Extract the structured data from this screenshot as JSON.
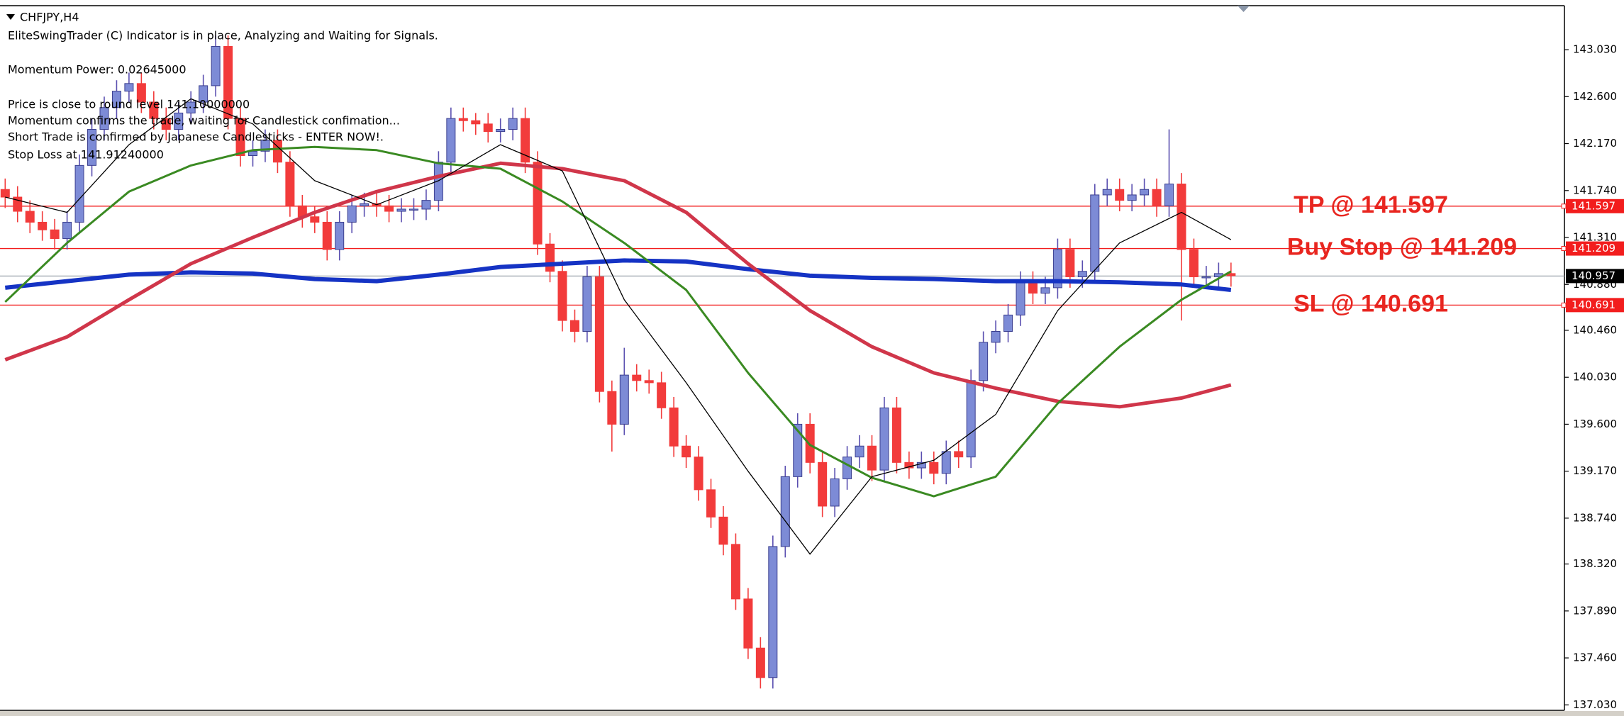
{
  "chart_data": {
    "type": "candlestick",
    "title": "CHFJPY,H4",
    "comment": [
      "EliteSwingTrader (C) Indicator is in place, Analyzing and Waiting for Signals.",
      "Momentum Power: 0.02645000",
      "Price is close to round level 141.10000000",
      "Momentum confirms the trade, waiting for Candlestick confimation...",
      "Short Trade is confirmed by Japanese Candlesticks - ENTER NOW!.",
      "Stop Loss at 141.91240000"
    ],
    "ylim": [
      136.98,
      143.42
    ],
    "yticks": [
      {
        "value": 143.03,
        "label": "143.030"
      },
      {
        "value": 142.6,
        "label": "142.600"
      },
      {
        "value": 142.17,
        "label": "142.170"
      },
      {
        "value": 141.74,
        "label": "141.740"
      },
      {
        "value": 141.31,
        "label": "141.310"
      },
      {
        "value": 140.88,
        "label": "140.880"
      },
      {
        "value": 140.46,
        "label": "140.460"
      },
      {
        "value": 140.03,
        "label": "140.030"
      },
      {
        "value": 139.6,
        "label": "139.600"
      },
      {
        "value": 139.17,
        "label": "139.170"
      },
      {
        "value": 138.74,
        "label": "138.740"
      },
      {
        "value": 138.32,
        "label": "138.320"
      },
      {
        "value": 137.89,
        "label": "137.890"
      },
      {
        "value": 137.46,
        "label": "137.460"
      },
      {
        "value": 137.03,
        "label": "137.030"
      }
    ],
    "bull_color": "#7d8bd6",
    "bear_color": "#f23b3b",
    "open": [
      141.75,
      141.68,
      141.55,
      141.45,
      141.38,
      141.3,
      141.45,
      141.97,
      142.3,
      142.5,
      142.65,
      142.72,
      142.55,
      142.4,
      142.3,
      142.45,
      142.55,
      142.7,
      143.06,
      142.4,
      142.06,
      142.1,
      142.2,
      142.0,
      141.6,
      141.5,
      141.45,
      141.2,
      141.45,
      141.6,
      141.62,
      141.6,
      141.55,
      141.57,
      141.57,
      141.65,
      142.0,
      142.4,
      142.38,
      142.35,
      142.28,
      142.3,
      142.4,
      142.0,
      141.25,
      141.0,
      140.55,
      140.45,
      140.95,
      139.9,
      139.6,
      140.05,
      140.0,
      139.98,
      139.75,
      139.4,
      139.3,
      139.0,
      138.75,
      138.5,
      138.0,
      137.55,
      137.28,
      138.48,
      139.12,
      139.6,
      139.25,
      138.85,
      139.1,
      139.3,
      139.4,
      139.18,
      139.75,
      139.25,
      139.2,
      139.25,
      139.15,
      139.35,
      139.3,
      140.0,
      140.35,
      140.45,
      140.6,
      140.9,
      140.8,
      140.85,
      141.2,
      140.95,
      141.0,
      141.7,
      141.75,
      141.65,
      141.7,
      141.75,
      141.6,
      141.8,
      141.2,
      140.95,
      140.95,
      140.98
    ],
    "high": [
      141.85,
      141.78,
      141.65,
      141.55,
      141.48,
      141.55,
      142.07,
      142.4,
      142.6,
      142.75,
      142.82,
      142.82,
      142.65,
      142.5,
      142.55,
      142.65,
      142.8,
      143.16,
      143.16,
      142.5,
      142.2,
      142.3,
      142.3,
      142.1,
      141.7,
      141.6,
      141.55,
      141.55,
      141.7,
      141.72,
      141.72,
      141.7,
      141.67,
      141.67,
      141.75,
      142.1,
      142.5,
      142.5,
      142.45,
      142.45,
      142.4,
      142.5,
      142.5,
      142.1,
      141.35,
      141.1,
      140.65,
      141.05,
      141.05,
      140.0,
      140.3,
      140.15,
      140.1,
      140.08,
      139.85,
      139.5,
      139.4,
      139.1,
      138.85,
      138.6,
      138.1,
      137.65,
      138.58,
      139.22,
      139.7,
      139.7,
      139.35,
      139.2,
      139.4,
      139.5,
      139.5,
      139.85,
      139.85,
      139.35,
      139.35,
      139.35,
      139.45,
      139.45,
      140.1,
      140.45,
      140.55,
      140.7,
      141.0,
      141.0,
      140.95,
      141.3,
      141.3,
      141.1,
      141.8,
      141.85,
      141.85,
      141.8,
      141.85,
      141.85,
      142.3,
      141.9,
      141.3,
      141.05,
      141.08,
      141.08
    ],
    "low": [
      141.58,
      141.45,
      141.35,
      141.28,
      141.2,
      141.2,
      141.35,
      141.87,
      142.2,
      142.4,
      142.55,
      142.45,
      142.3,
      142.2,
      142.2,
      142.35,
      142.45,
      142.6,
      142.3,
      141.96,
      141.96,
      142.0,
      141.9,
      141.5,
      141.4,
      141.35,
      141.1,
      141.1,
      141.35,
      141.5,
      141.5,
      141.45,
      141.45,
      141.47,
      141.47,
      141.55,
      141.9,
      142.28,
      142.25,
      142.18,
      142.18,
      142.2,
      141.9,
      141.15,
      140.9,
      140.45,
      140.35,
      140.35,
      139.8,
      139.35,
      139.5,
      139.9,
      139.88,
      139.65,
      139.3,
      139.2,
      138.9,
      138.65,
      138.4,
      137.9,
      137.45,
      137.18,
      137.18,
      138.38,
      139.02,
      139.15,
      138.75,
      138.75,
      139.0,
      139.2,
      139.08,
      139.08,
      139.15,
      139.1,
      139.1,
      139.05,
      139.05,
      139.2,
      139.2,
      139.9,
      140.25,
      140.35,
      140.5,
      140.7,
      140.7,
      140.75,
      140.85,
      140.85,
      140.9,
      141.6,
      141.55,
      141.55,
      141.6,
      141.5,
      141.5,
      140.55,
      140.85,
      140.85,
      140.85,
      140.86
    ],
    "close": [
      141.68,
      141.55,
      141.45,
      141.38,
      141.3,
      141.45,
      141.97,
      142.3,
      142.5,
      142.65,
      142.72,
      142.55,
      142.4,
      142.3,
      142.45,
      142.55,
      142.7,
      143.06,
      142.4,
      142.06,
      142.1,
      142.2,
      142.0,
      141.6,
      141.5,
      141.45,
      141.2,
      141.45,
      141.6,
      141.62,
      141.6,
      141.55,
      141.57,
      141.57,
      141.65,
      142.0,
      142.4,
      142.38,
      142.35,
      142.28,
      142.3,
      142.4,
      142.0,
      141.25,
      141.0,
      140.55,
      140.45,
      140.95,
      139.9,
      139.6,
      140.05,
      140.0,
      139.98,
      139.75,
      139.4,
      139.3,
      139.0,
      138.75,
      138.5,
      138.0,
      137.55,
      137.28,
      138.48,
      139.12,
      139.6,
      139.25,
      138.85,
      139.1,
      139.3,
      139.4,
      139.18,
      139.75,
      139.25,
      139.2,
      139.25,
      139.15,
      139.35,
      139.3,
      140.0,
      140.35,
      140.45,
      140.6,
      140.9,
      140.8,
      140.85,
      141.2,
      140.95,
      141.0,
      141.7,
      141.75,
      141.65,
      141.7,
      141.75,
      141.6,
      141.8,
      141.2,
      140.95,
      140.95,
      140.98,
      140.96
    ],
    "series": [
      {
        "color": "#1533c4",
        "width": 6,
        "x": [
          0,
          5,
          10,
          15,
          20,
          25,
          30,
          35,
          40,
          45,
          50,
          55,
          60,
          65,
          70,
          75,
          80,
          85,
          90,
          95,
          99
        ],
        "values": [
          140.85,
          140.91,
          140.97,
          140.99,
          140.98,
          140.93,
          140.91,
          140.97,
          141.04,
          141.07,
          141.1,
          141.09,
          141.02,
          140.96,
          140.94,
          140.93,
          140.91,
          140.91,
          140.9,
          140.88,
          140.83
        ]
      },
      {
        "color": "#d0364a",
        "width": 5,
        "x": [
          0,
          5,
          10,
          15,
          20,
          25,
          30,
          35,
          40,
          45,
          50,
          55,
          60,
          65,
          70,
          75,
          80,
          85,
          90,
          95,
          99
        ],
        "values": [
          140.19,
          140.4,
          140.74,
          141.07,
          141.31,
          141.54,
          141.73,
          141.87,
          141.99,
          141.94,
          141.83,
          141.54,
          141.07,
          140.64,
          140.31,
          140.07,
          139.93,
          139.81,
          139.76,
          139.84,
          139.96
        ]
      },
      {
        "color": "#3a8a22",
        "width": 3,
        "x": [
          0,
          5,
          10,
          15,
          20,
          25,
          30,
          35,
          40,
          45,
          50,
          55,
          60,
          65,
          70,
          75,
          80,
          85,
          90,
          95,
          99
        ],
        "values": [
          140.72,
          141.26,
          141.73,
          141.97,
          142.11,
          142.14,
          142.11,
          141.99,
          141.94,
          141.64,
          141.26,
          140.83,
          140.07,
          139.41,
          139.11,
          138.94,
          139.12,
          139.79,
          140.31,
          140.74,
          141.0
        ]
      },
      {
        "color": "#000000",
        "width": 1.3,
        "x": [
          0,
          5,
          10,
          15,
          20,
          25,
          30,
          35,
          40,
          45,
          50,
          55,
          60,
          65,
          70,
          75,
          80,
          85,
          90,
          95,
          99
        ],
        "values": [
          141.68,
          141.54,
          142.16,
          142.58,
          142.35,
          141.83,
          141.61,
          141.83,
          142.16,
          141.92,
          140.74,
          139.98,
          139.17,
          138.41,
          139.12,
          139.27,
          139.69,
          140.64,
          141.26,
          141.54,
          141.29
        ]
      }
    ],
    "levels": [
      {
        "value": 141.597,
        "label": "TP @ 141.597",
        "color": "#f21d1d"
      },
      {
        "value": 141.209,
        "label": "Buy Stop @ 141.209",
        "color": "#f21d1d"
      },
      {
        "value": 140.691,
        "label": "SL @ 140.691",
        "color": "#f21d1d"
      }
    ],
    "bid": 140.957,
    "bid_color": "#9aa3ad"
  }
}
